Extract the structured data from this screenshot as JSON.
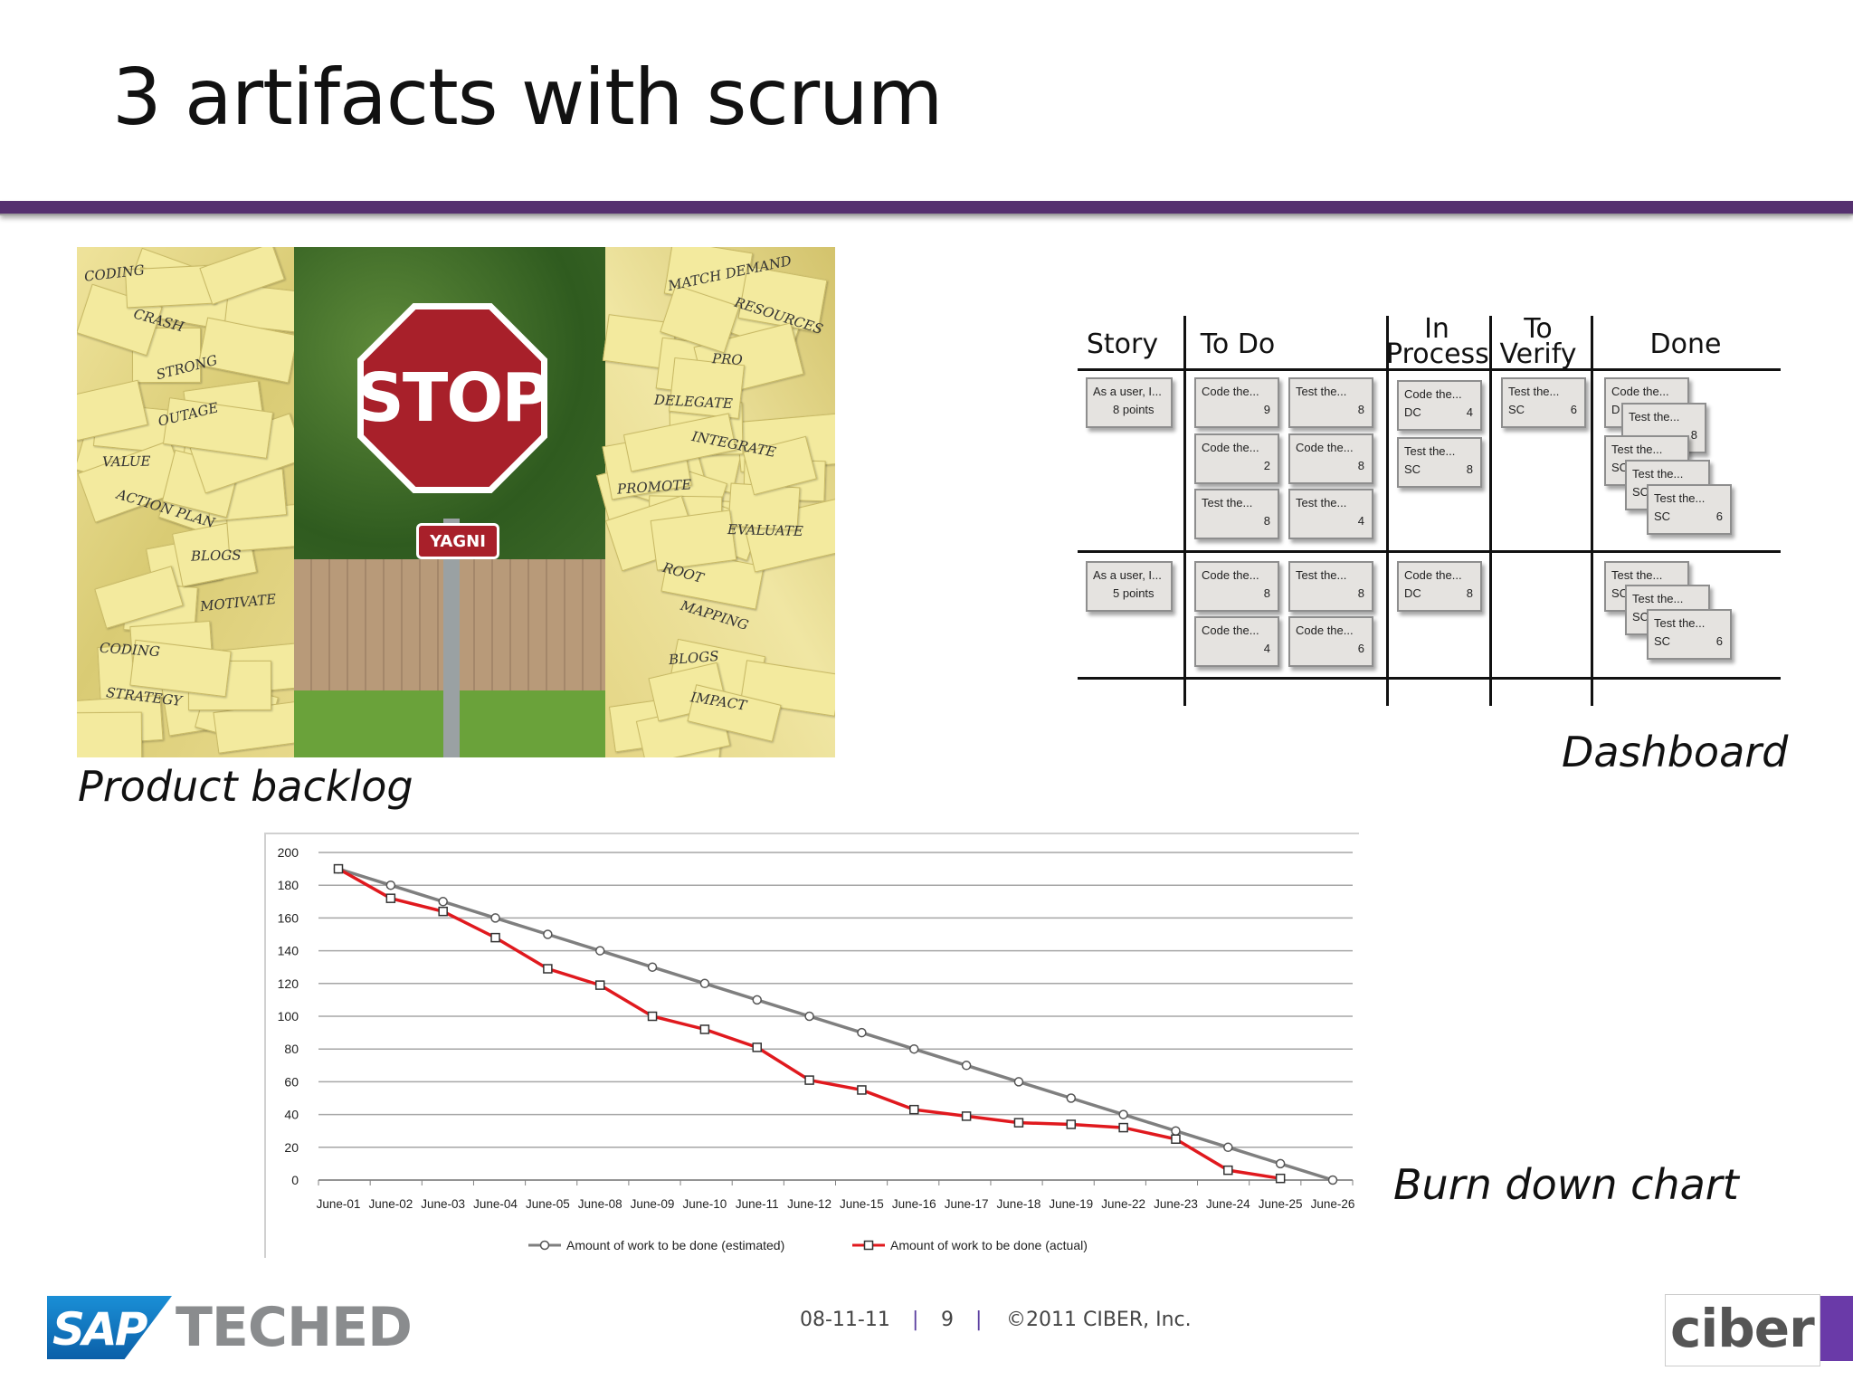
{
  "slide": {
    "title": "3 artifacts with scrum",
    "captions": {
      "backlog": "Product backlog",
      "dashboard": "Dashboard",
      "burndown": "Burn down chart"
    }
  },
  "backlog_photo": {
    "stop_text": "STOP",
    "yagni_text": "YAGNI",
    "notes_left": [
      "CODING",
      "CRASH",
      "STRONG",
      "OUTAGE",
      "VALUE",
      "ACTION PLAN",
      "BLOGS",
      "MOTIVATE",
      "CODING",
      "STRATEGY"
    ],
    "notes_right": [
      "MATCH DEMAND",
      "RESOURCES",
      "PRO",
      "DELEGATE",
      "INTEGRATE",
      "PROMOTE",
      "EVALUATE",
      "ROOT",
      "MAPPING",
      "BLOGS",
      "IMPACT"
    ]
  },
  "dashboard": {
    "columns": [
      "Story",
      "To Do",
      "In Process",
      "To Verify",
      "Done"
    ],
    "cards": [
      {
        "text": "As a user, I...",
        "sub": "8 points",
        "num": ""
      },
      {
        "text": "Code the...",
        "sub": "",
        "num": "9"
      },
      {
        "text": "Test the...",
        "sub": "",
        "num": "8"
      },
      {
        "text": "Code the...",
        "sub": "",
        "num": "2"
      },
      {
        "text": "Code the...",
        "sub": "",
        "num": "8"
      },
      {
        "text": "Test the...",
        "sub": "",
        "num": "8"
      },
      {
        "text": "Test the...",
        "sub": "",
        "num": "4"
      },
      {
        "text": "Code the...",
        "sub": "DC",
        "num": "4"
      },
      {
        "text": "Test the...",
        "sub": "SC",
        "num": "8"
      },
      {
        "text": "Test the...",
        "sub": "SC",
        "num": "6"
      },
      {
        "text": "Code the...",
        "sub": "D",
        "num": ""
      },
      {
        "text": "Test the...",
        "sub": "",
        "num": "8"
      },
      {
        "text": "Test the...",
        "sub": "SC",
        "num": ""
      },
      {
        "text": "Test the...",
        "sub": "SC",
        "num": ""
      },
      {
        "text": "Test the...",
        "sub": "SC",
        "num": "6"
      },
      {
        "text": "As a user, I...",
        "sub": "5 points",
        "num": ""
      },
      {
        "text": "Code the...",
        "sub": "",
        "num": "8"
      },
      {
        "text": "Test the...",
        "sub": "",
        "num": "8"
      },
      {
        "text": "Code the...",
        "sub": "",
        "num": "4"
      },
      {
        "text": "Code the...",
        "sub": "",
        "num": "6"
      },
      {
        "text": "Code the...",
        "sub": "DC",
        "num": "8"
      },
      {
        "text": "Test the...",
        "sub": "SC",
        "num": ""
      },
      {
        "text": "Test the...",
        "sub": "SC",
        "num": ""
      },
      {
        "text": "Test the...",
        "sub": "SC",
        "num": "6"
      }
    ]
  },
  "chart_data": {
    "type": "line",
    "title": "",
    "xlabel": "",
    "ylabel": "",
    "ylim": [
      0,
      200
    ],
    "yticks": [
      0,
      20,
      40,
      60,
      80,
      100,
      120,
      140,
      160,
      180,
      200
    ],
    "grid": true,
    "legend_position": "bottom",
    "categories": [
      "June-01",
      "June-02",
      "June-03",
      "June-04",
      "June-05",
      "June-08",
      "June-09",
      "June-10",
      "June-11",
      "June-12",
      "June-15",
      "June-16",
      "June-17",
      "June-18",
      "June-19",
      "June-22",
      "June-23",
      "June-24",
      "June-25",
      "June-26"
    ],
    "series": [
      {
        "name": "Amount of work to be done (estimated)",
        "color": "#7f7f7f",
        "marker": "circle",
        "values": [
          190,
          180,
          170,
          160,
          150,
          140,
          130,
          120,
          110,
          100,
          90,
          80,
          70,
          60,
          50,
          40,
          30,
          20,
          10,
          0
        ]
      },
      {
        "name": "Amount of work to be done (actual)",
        "color": "#e0191e",
        "marker": "square",
        "values": [
          190,
          172,
          164,
          148,
          129,
          119,
          100,
          92,
          81,
          61,
          55,
          43,
          39,
          35,
          34,
          32,
          25,
          6,
          1,
          null
        ]
      }
    ]
  },
  "footer": {
    "date": "08-11-11",
    "sep1": "|",
    "page": "9",
    "sep2": "|",
    "copyright": "©2011 CIBER, Inc.",
    "sap": "SAP",
    "teched": "TECHED",
    "ciber": "ciber"
  }
}
